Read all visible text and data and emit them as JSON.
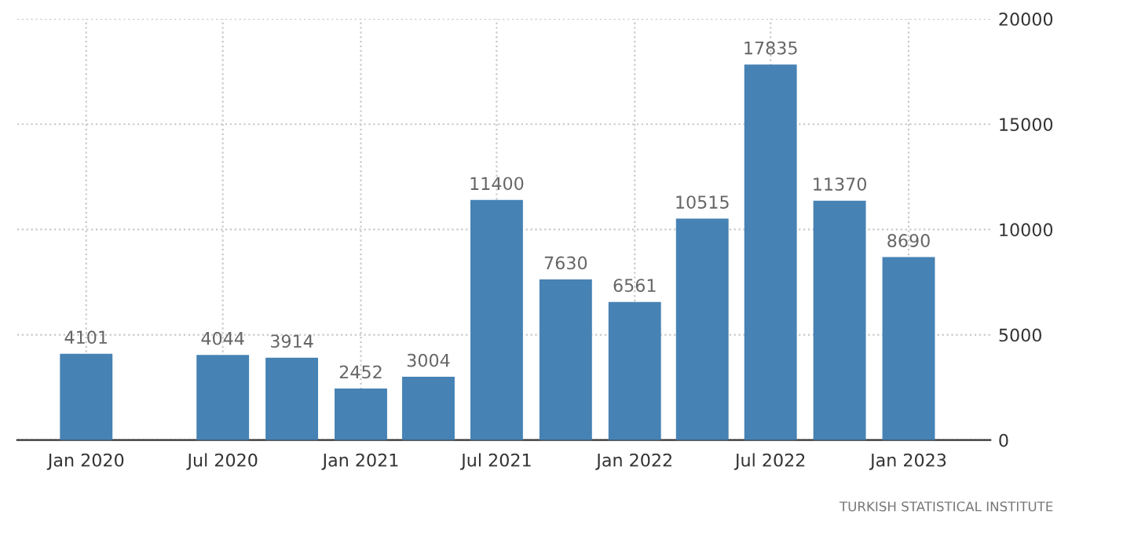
{
  "chart_data": {
    "type": "bar",
    "x": [
      "2020-01",
      "2020-04",
      "2020-07",
      "2020-10",
      "2021-01",
      "2021-04",
      "2021-07",
      "2021-10",
      "2022-01",
      "2022-04",
      "2022-07",
      "2022-10",
      "2023-01"
    ],
    "series": [
      {
        "color": "#4682b4",
        "values": [
          4101,
          null,
          4044,
          3914,
          2452,
          3004,
          11400,
          7630,
          6561,
          10515,
          17835,
          11370,
          8690
        ]
      }
    ],
    "data_labels": true,
    "xlim": [
      "2019-10-01",
      "2023-04-20"
    ],
    "xticks": [
      {
        "value": "2020-01",
        "label": "Jan 2020"
      },
      {
        "value": "2020-07",
        "label": "Jul 2020"
      },
      {
        "value": "2021-01",
        "label": "Jan 2021"
      },
      {
        "value": "2021-07",
        "label": "Jul 2021"
      },
      {
        "value": "2022-01",
        "label": "Jan 2022"
      },
      {
        "value": "2022-07",
        "label": "Jul 2022"
      },
      {
        "value": "2023-01",
        "label": "Jan 2023"
      }
    ],
    "ylim": [
      0,
      20000
    ],
    "yticks": [
      0,
      5000,
      10000,
      15000,
      20000
    ],
    "grid": true,
    "annotations": [
      "TURKISH STATISTICAL INSTITUTE"
    ]
  }
}
